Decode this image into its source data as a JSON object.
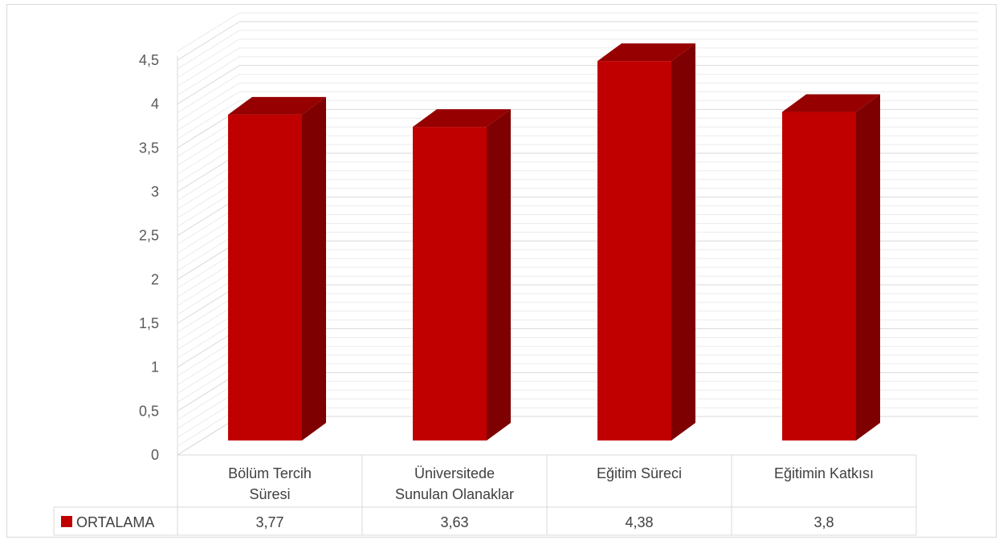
{
  "chart_data": {
    "type": "bar",
    "style": "3d-column-with-data-table",
    "categories": [
      [
        "Bölüm Tercih",
        "Süresi"
      ],
      [
        "Üniversitede",
        "Sunulan Olanaklar"
      ],
      [
        "Eğitim Süreci"
      ],
      [
        "Eğitimin Katkısı"
      ]
    ],
    "series": [
      {
        "name": "ORTALAMA",
        "values": [
          3.77,
          3.63,
          4.38,
          3.8
        ],
        "labels": [
          "3,77",
          "3,63",
          "4,38",
          "3,8"
        ]
      }
    ],
    "ylim": [
      0,
      4.5
    ],
    "yticks": [
      "0",
      "0,5",
      "1",
      "1,5",
      "2",
      "2,5",
      "3",
      "3,5",
      "4",
      "4,5"
    ],
    "grid": true,
    "legend": "in-data-table",
    "colors": {
      "bar_front": "#c00000",
      "bar_side": "#7f0000",
      "bar_top": "#960000",
      "grid": "#d9d9d9",
      "table_border": "#d9d9d9"
    }
  }
}
